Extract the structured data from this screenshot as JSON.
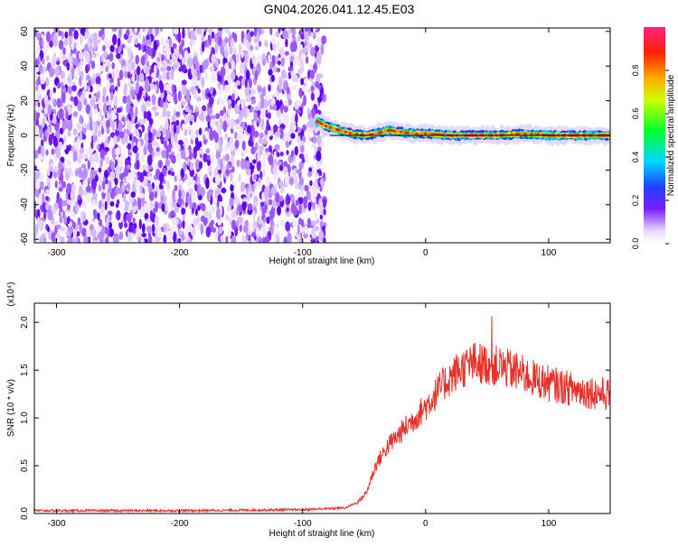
{
  "figure": {
    "title": "GN04.2026.041.12.45.E03"
  },
  "chart_data": [
    {
      "type": "heatmap",
      "xlabel": "Height of straight line (km)",
      "ylabel": "Frequency (Hz)",
      "xlim": [
        -318,
        150
      ],
      "ylim": [
        -62,
        62
      ],
      "x_ticks": [
        -300,
        -200,
        -100,
        0,
        100
      ],
      "y_ticks": [
        -60,
        -40,
        -20,
        0,
        20,
        40,
        60
      ],
      "noise_region_x": [
        -318,
        -82
      ],
      "signal_track": {
        "x": [
          -88,
          -80,
          -70,
          -60,
          -50,
          -40,
          -30,
          -20,
          -10,
          0,
          20,
          40,
          60,
          80,
          100,
          120,
          150
        ],
        "frequency": [
          8,
          5,
          3,
          1,
          0,
          1,
          3,
          2,
          1,
          1,
          0,
          0,
          0,
          1,
          0,
          0,
          0
        ]
      },
      "colorbar": {
        "label": "Normalized spectral amplitude",
        "range": [
          0,
          1
        ],
        "ticks": [
          0.0,
          0.2,
          0.4,
          0.6,
          0.8
        ]
      }
    },
    {
      "type": "line",
      "xlabel": "Height of straight line (km)",
      "ylabel": "SNR (10 * v/v)",
      "y_multiplier": "(x10⁴)",
      "xlim": [
        -318,
        150
      ],
      "ylim": [
        0,
        2.2
      ],
      "x_ticks": [
        -300,
        -200,
        -100,
        0,
        100
      ],
      "y_ticks": [
        0.0,
        0.5,
        1.0,
        1.5,
        2.0
      ],
      "series": [
        {
          "color": "#e8302a",
          "x": [
            -318,
            -200,
            -100,
            -65,
            -55,
            -48,
            -44,
            -40,
            -35,
            -30,
            -25,
            -20,
            -15,
            -10,
            -5,
            0,
            5,
            10,
            15,
            20,
            25,
            30,
            35,
            40,
            45,
            50,
            55,
            60,
            65,
            70,
            75,
            80,
            90,
            100,
            110,
            120,
            130,
            140,
            150
          ],
          "y": [
            0.03,
            0.03,
            0.04,
            0.06,
            0.12,
            0.22,
            0.38,
            0.52,
            0.62,
            0.72,
            0.78,
            0.85,
            0.92,
            0.98,
            1.05,
            1.12,
            1.2,
            1.28,
            1.36,
            1.42,
            1.48,
            1.52,
            1.55,
            1.58,
            1.57,
            1.56,
            1.55,
            1.54,
            1.52,
            1.5,
            1.48,
            1.45,
            1.4,
            1.36,
            1.33,
            1.3,
            1.28,
            1.26,
            1.24
          ]
        }
      ]
    }
  ]
}
